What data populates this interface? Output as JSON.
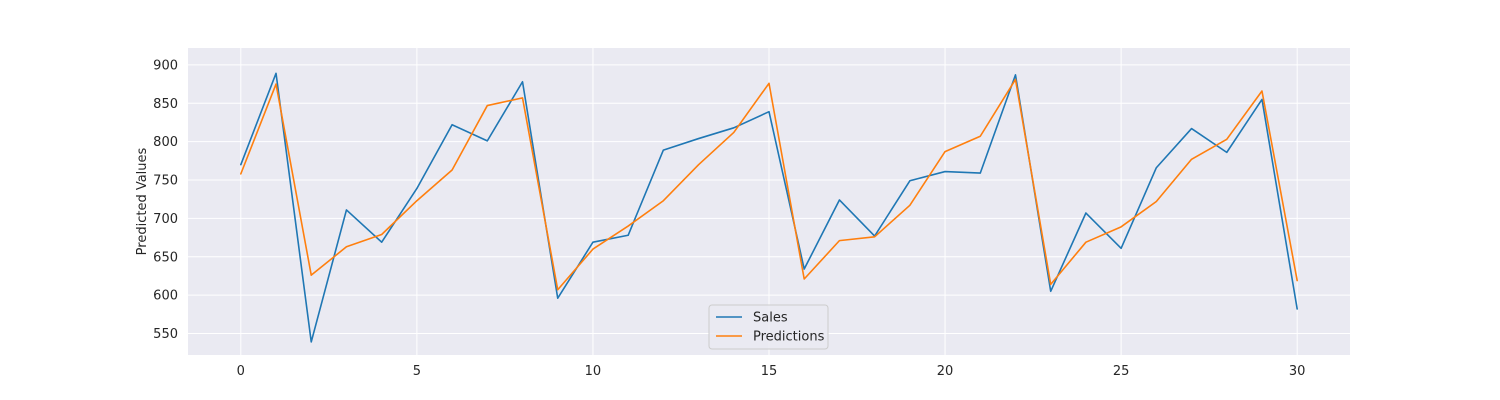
{
  "chart_data": {
    "type": "line",
    "title": "",
    "xlabel": "",
    "ylabel": "Predicted Values",
    "xlim": [
      -1.5,
      31.5
    ],
    "ylim": [
      522,
      922
    ],
    "xticks": [
      0,
      5,
      10,
      15,
      20,
      25,
      30
    ],
    "yticks": [
      550,
      600,
      650,
      700,
      750,
      800,
      850,
      900
    ],
    "grid": true,
    "legend_position": "bottom-center",
    "x": [
      0,
      1,
      2,
      3,
      4,
      5,
      6,
      7,
      8,
      9,
      10,
      11,
      12,
      13,
      14,
      15,
      16,
      17,
      18,
      19,
      20,
      21,
      22,
      23,
      24,
      25,
      26,
      27,
      28,
      29,
      30
    ],
    "series": [
      {
        "name": "Sales",
        "color": "#1f77b4",
        "values": [
          770,
          889,
          539,
          711,
          669,
          739,
          822,
          801,
          878,
          596,
          669,
          678,
          789,
          804,
          818,
          839,
          634,
          724,
          677,
          749,
          761,
          759,
          887,
          605,
          707,
          661,
          766,
          817,
          786,
          855,
          582
        ]
      },
      {
        "name": "Predictions",
        "color": "#ff7f0e",
        "values": [
          758,
          875,
          626,
          663,
          679,
          723,
          763,
          847,
          857,
          607,
          660,
          690,
          723,
          770,
          812,
          876,
          621,
          671,
          676,
          717,
          787,
          807,
          881,
          614,
          669,
          689,
          722,
          777,
          803,
          866,
          619
        ]
      }
    ]
  }
}
